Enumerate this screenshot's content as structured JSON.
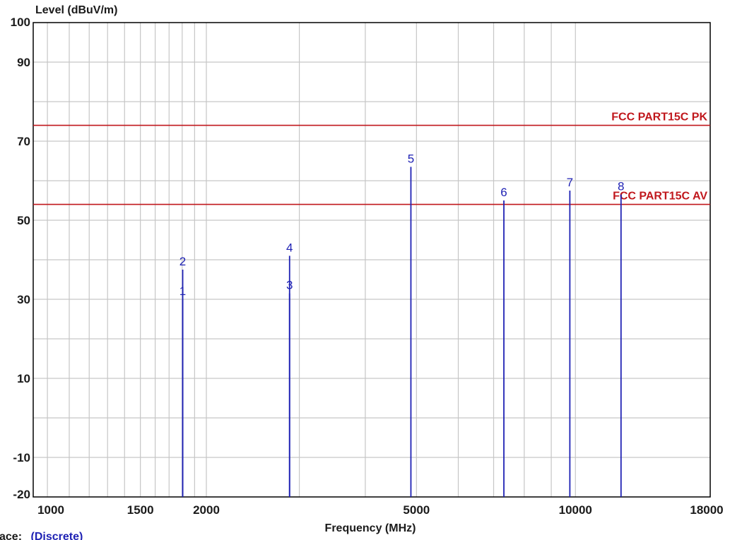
{
  "chart_data": {
    "type": "line",
    "title": "",
    "ylabel": "Level (dBuV/m)",
    "xlabel": "Frequency (MHz)",
    "x_scale": "log",
    "xlim": [
      940,
      18000
    ],
    "ylim": [
      -20,
      100
    ],
    "y_ticks": [
      100,
      90,
      70,
      50,
      30,
      10,
      -10,
      -20
    ],
    "y_gridlines": [
      90,
      80,
      70,
      60,
      50,
      40,
      30,
      20,
      10,
      0,
      -10
    ],
    "x_ticks": [
      1000,
      1500,
      2000,
      5000,
      10000,
      18000
    ],
    "x_gridlines": [
      1000,
      1100,
      1200,
      1300,
      1400,
      1500,
      1600,
      1700,
      1800,
      1900,
      2000,
      3000,
      4000,
      5000,
      6000,
      7000,
      8000,
      9000,
      10000
    ],
    "grid": true,
    "limit_lines": [
      {
        "name": "FCC PART15C  PK",
        "value": 74,
        "color": "#c0171c"
      },
      {
        "name": "FCC PART15C  AV",
        "value": 54,
        "color": "#c0171c"
      }
    ],
    "markers": [
      {
        "label": "1",
        "x": 1804,
        "y": 30
      },
      {
        "label": "2",
        "x": 1804,
        "y": 37.5
      },
      {
        "label": "3",
        "x": 2875,
        "y": 31.5
      },
      {
        "label": "4",
        "x": 2875,
        "y": 41
      },
      {
        "label": "5",
        "x": 4880,
        "y": 63.5
      },
      {
        "label": "6",
        "x": 7320,
        "y": 55
      },
      {
        "label": "7",
        "x": 9760,
        "y": 57.5
      },
      {
        "label": "8",
        "x": 12200,
        "y": 56.5
      }
    ],
    "marker_color": "#1f22b4",
    "trace_label": "ace:",
    "trace_value": "(Discrete)"
  }
}
